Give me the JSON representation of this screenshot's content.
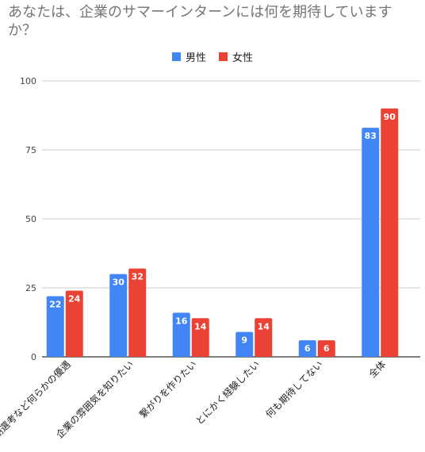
{
  "chart_data": {
    "type": "bar",
    "title": "あなたは、企業のサマーインターンには何を期待していますか？",
    "categories": [
      "早期選考など何らかの優遇",
      "企業の雰囲気を知りたい",
      "繋がりを作りたい",
      "とにかく経験したい",
      "何も期待してない",
      "全体"
    ],
    "series": [
      {
        "name": "男性",
        "color": "#4285f4",
        "values": [
          22,
          30,
          16,
          9,
          6,
          83
        ]
      },
      {
        "name": "女性",
        "color": "#ea4335",
        "values": [
          24,
          32,
          14,
          14,
          6,
          90
        ]
      }
    ],
    "ylim": [
      0,
      100
    ],
    "yticks": [
      "0",
      "25",
      "50",
      "75",
      "100"
    ],
    "grid": true,
    "legend_position": "top-center",
    "data_labels": true
  }
}
